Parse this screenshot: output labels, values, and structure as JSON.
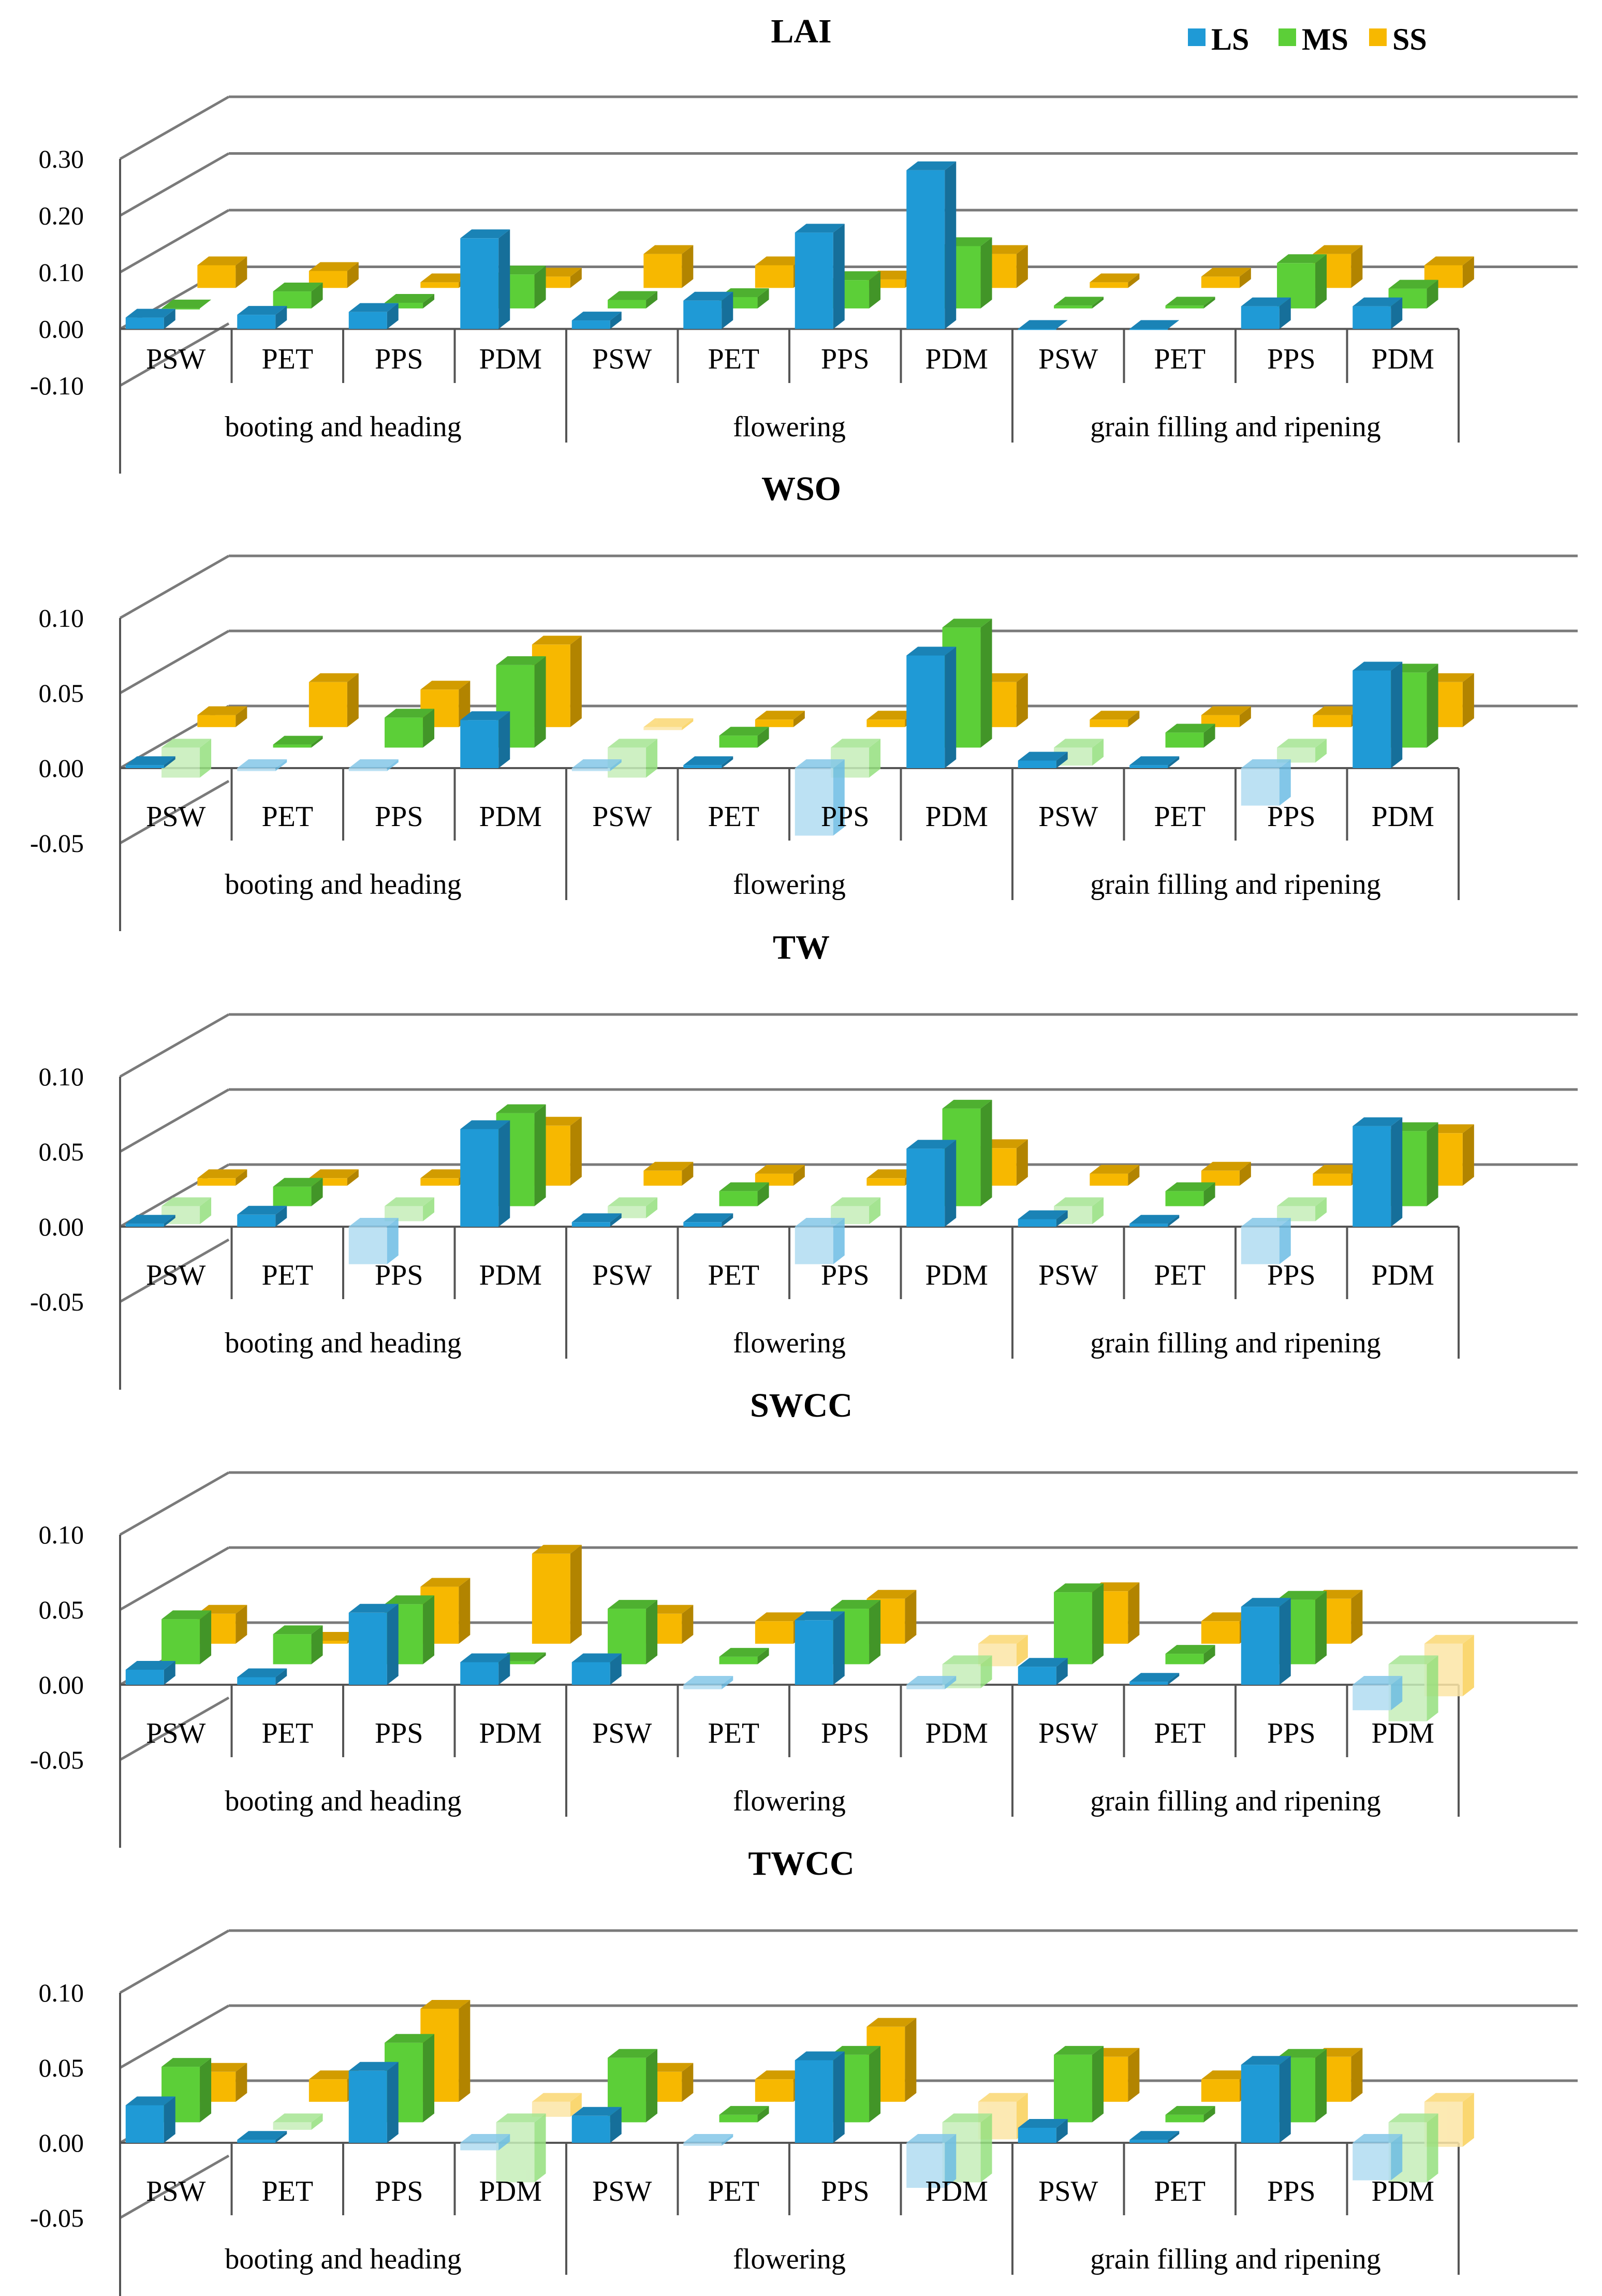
{
  "legend": [
    {
      "name": "LS",
      "color": "#1f9ad6"
    },
    {
      "name": "MS",
      "color": "#5ccf38"
    },
    {
      "name": "SS",
      "color": "#f7b800"
    }
  ],
  "chart_data": [
    {
      "type": "bar",
      "title": "LAI",
      "yticks": [
        "0.30",
        "0.20",
        "0.10",
        "0.00",
        "-0.10"
      ],
      "ylim": [
        -0.1,
        0.3
      ],
      "categories": [
        "PSW",
        "PET",
        "PPS",
        "PDM",
        "PSW",
        "PET",
        "PPS",
        "PDM",
        "PSW",
        "PET",
        "PPS",
        "PDM"
      ],
      "groups": [
        "booting and heading",
        "flowering",
        "grain filling and ripening"
      ],
      "series": [
        {
          "name": "LS",
          "values": [
            0.02,
            0.025,
            0.03,
            0.16,
            0.015,
            0.05,
            0.17,
            0.28,
            0.0,
            0.0,
            0.04,
            0.04
          ]
        },
        {
          "name": "MS",
          "values": [
            0.0,
            0.03,
            0.01,
            0.06,
            0.015,
            0.02,
            0.05,
            0.11,
            0.005,
            0.005,
            0.08,
            0.035
          ]
        },
        {
          "name": "SS",
          "values": [
            0.04,
            0.03,
            0.01,
            0.02,
            0.06,
            0.04,
            0.015,
            0.06,
            0.01,
            0.02,
            0.06,
            0.04
          ]
        }
      ]
    },
    {
      "type": "bar",
      "title": "WSO",
      "yticks": [
        "0.10",
        "0.05",
        "0.00",
        "-0.05"
      ],
      "ylim": [
        -0.05,
        0.1
      ],
      "categories": [
        "PSW",
        "PET",
        "PPS",
        "PDM",
        "PSW",
        "PET",
        "PPS",
        "PDM",
        "PSW",
        "PET",
        "PPS",
        "PDM"
      ],
      "groups": [
        "booting and heading",
        "flowering",
        "grain filling and ripening"
      ],
      "series": [
        {
          "name": "LS",
          "values": [
            0.002,
            -0.002,
            -0.002,
            0.032,
            -0.002,
            0.002,
            -0.045,
            0.075,
            0.005,
            0.002,
            -0.025,
            0.065
          ]
        },
        {
          "name": "MS",
          "values": [
            -0.02,
            0.002,
            0.02,
            0.055,
            -0.02,
            0.008,
            -0.02,
            0.08,
            -0.012,
            0.01,
            -0.01,
            0.05
          ]
        },
        {
          "name": "SS",
          "values": [
            0.008,
            0.03,
            0.025,
            0.055,
            -0.002,
            0.005,
            0.005,
            0.03,
            0.005,
            0.008,
            0.008,
            0.03
          ]
        }
      ]
    },
    {
      "type": "bar",
      "title": "TW",
      "yticks": [
        "0.10",
        "0.05",
        "0.00",
        "-0.05"
      ],
      "ylim": [
        -0.05,
        0.1
      ],
      "categories": [
        "PSW",
        "PET",
        "PPS",
        "PDM",
        "PSW",
        "PET",
        "PPS",
        "PDM",
        "PSW",
        "PET",
        "PPS",
        "PDM"
      ],
      "groups": [
        "booting and heading",
        "flowering",
        "grain filling and ripening"
      ],
      "series": [
        {
          "name": "LS",
          "values": [
            0.002,
            0.008,
            -0.025,
            0.065,
            0.003,
            0.003,
            -0.025,
            0.052,
            0.005,
            0.002,
            -0.025,
            0.067
          ]
        },
        {
          "name": "MS",
          "values": [
            -0.012,
            0.013,
            -0.01,
            0.062,
            -0.008,
            0.01,
            -0.012,
            0.065,
            -0.012,
            0.01,
            -0.01,
            0.05
          ]
        },
        {
          "name": "SS",
          "values": [
            0.005,
            0.005,
            0.005,
            0.04,
            0.01,
            0.008,
            0.005,
            0.025,
            0.008,
            0.01,
            0.008,
            0.035
          ]
        }
      ]
    },
    {
      "type": "bar",
      "title": "SWCC",
      "yticks": [
        "0.10",
        "0.05",
        "0.00",
        "-0.05"
      ],
      "ylim": [
        -0.05,
        0.1
      ],
      "categories": [
        "PSW",
        "PET",
        "PPS",
        "PDM",
        "PSW",
        "PET",
        "PPS",
        "PDM",
        "PSW",
        "PET",
        "PPS",
        "PDM"
      ],
      "groups": [
        "booting and heading",
        "flowering",
        "grain filling and ripening"
      ],
      "series": [
        {
          "name": "LS",
          "values": [
            0.01,
            0.005,
            0.048,
            0.015,
            0.015,
            -0.003,
            0.043,
            -0.003,
            0.012,
            0.002,
            0.052,
            -0.017
          ]
        },
        {
          "name": "MS",
          "values": [
            0.03,
            0.02,
            0.04,
            0.002,
            0.037,
            0.005,
            0.037,
            -0.016,
            0.048,
            0.007,
            0.043,
            -0.038
          ]
        },
        {
          "name": "SS",
          "values": [
            0.02,
            0.002,
            0.038,
            0.06,
            0.02,
            0.015,
            0.03,
            -0.015,
            0.035,
            0.015,
            0.03,
            -0.035
          ]
        }
      ]
    },
    {
      "type": "bar",
      "title": "TWCC",
      "yticks": [
        "0.10",
        "0.05",
        "0.00",
        "-0.05"
      ],
      "ylim": [
        -0.05,
        0.1
      ],
      "categories": [
        "PSW",
        "PET",
        "PPS",
        "PDM",
        "PSW",
        "PET",
        "PPS",
        "PDM",
        "PSW",
        "PET",
        "PPS",
        "PDM"
      ],
      "groups": [
        "booting and heading",
        "flowering",
        "grain filling and ripening"
      ],
      "series": [
        {
          "name": "LS",
          "values": [
            0.025,
            0.002,
            0.048,
            -0.005,
            0.018,
            -0.002,
            0.055,
            -0.03,
            0.01,
            0.002,
            0.052,
            -0.025
          ]
        },
        {
          "name": "MS",
          "values": [
            0.037,
            -0.005,
            0.053,
            -0.04,
            0.043,
            0.005,
            0.045,
            -0.04,
            0.045,
            0.005,
            0.043,
            -0.04
          ]
        },
        {
          "name": "SS",
          "values": [
            0.02,
            0.015,
            0.062,
            -0.01,
            0.02,
            0.015,
            0.05,
            -0.025,
            0.03,
            0.015,
            0.03,
            -0.03
          ]
        }
      ]
    }
  ]
}
